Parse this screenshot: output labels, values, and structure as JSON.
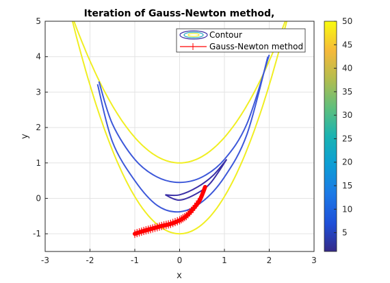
{
  "chart_data": {
    "type": "line",
    "title": "Iteration of Gauss-Newton method,",
    "xlabel": "x",
    "ylabel": "y",
    "xlim": [
      -3,
      3
    ],
    "ylim": [
      -1.5,
      5
    ],
    "xticks": [
      "-3",
      "-2",
      "-1",
      "0",
      "1",
      "2",
      "3"
    ],
    "yticks": [
      "-1",
      "0",
      "1",
      "2",
      "3",
      "4",
      "5"
    ],
    "grid": true,
    "legend": {
      "placement": "top-right",
      "entries": [
        "Contour",
        "Gauss-Newton method"
      ]
    },
    "colorbar": {
      "range": [
        1,
        50
      ],
      "ticks": [
        "5",
        "10",
        "15",
        "20",
        "25",
        "30",
        "35",
        "40",
        "45",
        "50"
      ]
    },
    "contour_levels": [
      {
        "level": 50,
        "color": "#f0ee22",
        "type": "parabola",
        "vertex_y": 1.0,
        "k": 0.72
      },
      {
        "level": 50,
        "color": "#f0ee22",
        "type": "parabola",
        "vertex_y": -1.0,
        "k": 1.05
      },
      {
        "level": 12,
        "color": "#3d58d9",
        "type": "curve",
        "points": [
          [
            -1.8,
            3.3
          ],
          [
            -1.5,
            2.1
          ],
          [
            -1.0,
            1.1
          ],
          [
            -0.5,
            0.6
          ],
          [
            0.0,
            0.45
          ],
          [
            0.5,
            0.6
          ],
          [
            1.0,
            1.1
          ],
          [
            1.5,
            2.1
          ],
          [
            2.0,
            4.05
          ]
        ]
      },
      {
        "level": 12,
        "color": "#3d58d9",
        "type": "curve",
        "points": [
          [
            -1.83,
            3.22
          ],
          [
            -1.5,
            1.6
          ],
          [
            -1.0,
            0.5
          ],
          [
            -0.5,
            -0.2
          ],
          [
            0.0,
            -0.38
          ],
          [
            0.5,
            -0.1
          ],
          [
            1.0,
            0.6
          ],
          [
            1.5,
            1.8
          ],
          [
            1.97,
            4.0
          ]
        ]
      },
      {
        "level": 3,
        "color": "#3b2fa6",
        "type": "curve",
        "points": [
          [
            -0.32,
            0.1
          ],
          [
            0.0,
            -0.05
          ],
          [
            0.4,
            0.15
          ],
          [
            0.7,
            0.45
          ],
          [
            1.05,
            1.1
          ]
        ]
      },
      {
        "level": 3,
        "color": "#3b2fa6",
        "type": "curve",
        "points": [
          [
            -0.32,
            0.1
          ],
          [
            0.0,
            0.1
          ],
          [
            0.4,
            0.32
          ],
          [
            0.75,
            0.65
          ],
          [
            1.05,
            1.1
          ]
        ]
      }
    ],
    "series": [
      {
        "name": "Gauss-Newton method",
        "color": "#ff0000",
        "x": [
          -1.0,
          -0.8,
          -0.6,
          -0.4,
          -0.2,
          0.0,
          0.15,
          0.3,
          0.45,
          0.57
        ],
        "y": [
          -1.0,
          -0.92,
          -0.85,
          -0.78,
          -0.72,
          -0.62,
          -0.5,
          -0.3,
          -0.05,
          0.32
        ]
      }
    ]
  }
}
